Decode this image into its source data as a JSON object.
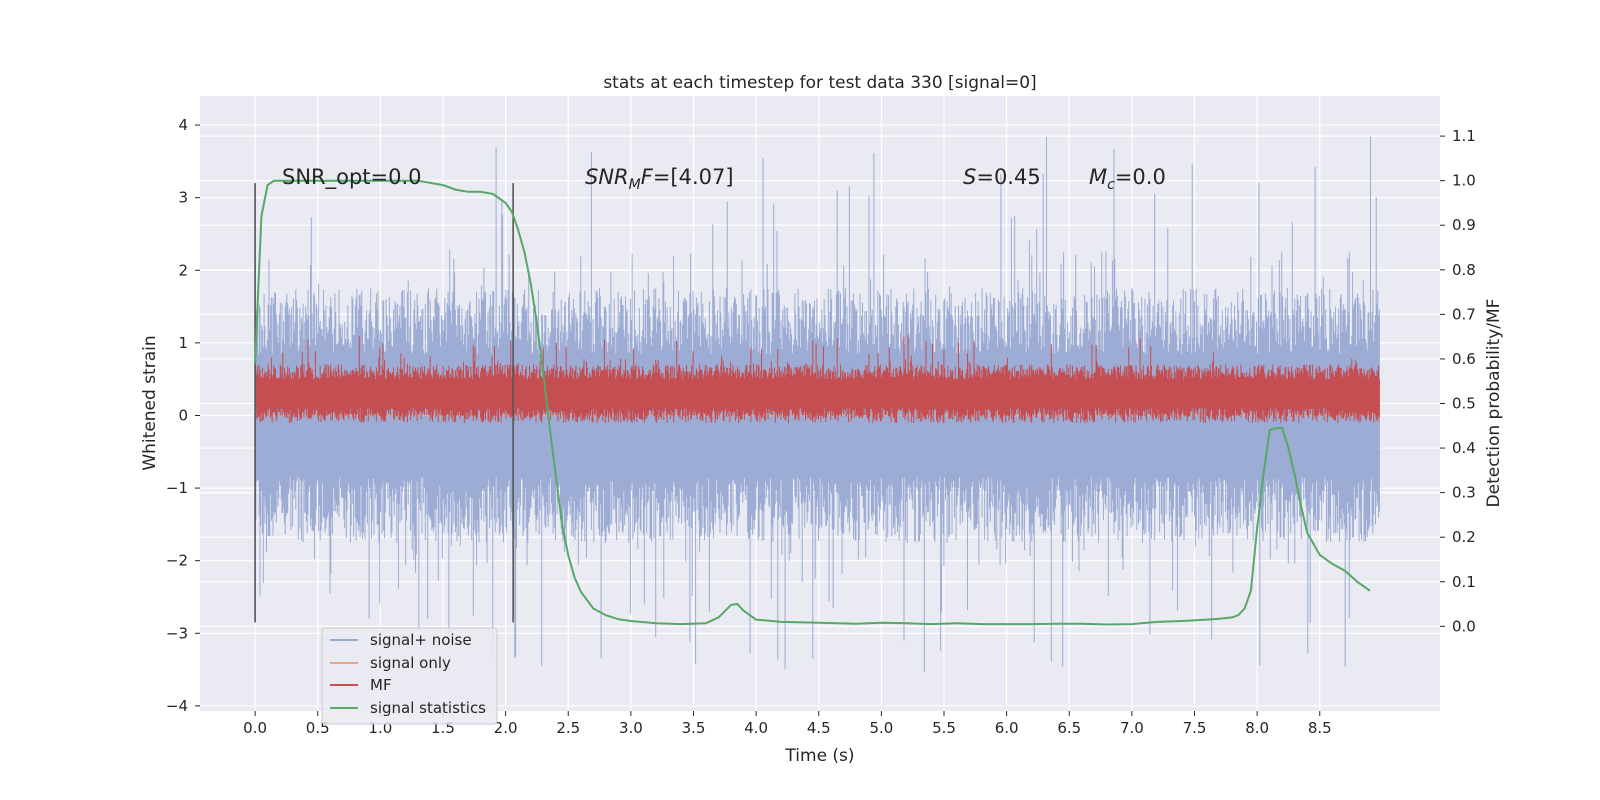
{
  "chart_data": {
    "type": "line",
    "title": "stats at each timestep for test data 330 [signal=0]",
    "xlabel": "Time (s)",
    "ylabel": "Whitened strain",
    "ylabel_right": "Detection probability/MF",
    "xlim": [
      -0.44,
      9.46
    ],
    "ylim": [
      -4.07,
      4.4
    ],
    "ylim_right": [
      -0.19,
      1.19
    ],
    "x_ticks": [
      "0.0",
      "0.5",
      "1.0",
      "1.5",
      "2.0",
      "2.5",
      "3.0",
      "3.5",
      "4.0",
      "4.5",
      "5.0",
      "5.5",
      "6.0",
      "6.5",
      "7.0",
      "7.5",
      "8.0",
      "8.5"
    ],
    "y_ticks": [
      "4",
      "3",
      "2",
      "1",
      "0",
      "−1",
      "−2",
      "−3",
      "−4"
    ],
    "y_ticks_right": [
      "1.1",
      "1.0",
      "0.9",
      "0.8",
      "0.7",
      "0.6",
      "0.5",
      "0.4",
      "0.3",
      "0.2",
      "0.1",
      "0.0"
    ],
    "grid": true,
    "legend_position": "lower-left",
    "annotations": {
      "snr_opt": "SNR_opt=0.0",
      "snr_mf_prefix": "SNR",
      "snr_mf_sub": "M",
      "snr_mf_var": "F",
      "snr_mf_value": "=[4.07]",
      "s_var": "S",
      "s_value": "=0.45",
      "mc_var": "M",
      "mc_sub": "c",
      "mc_value": "=0.0"
    },
    "vlines": [
      {
        "x": 0.0,
        "ymin": -2.85,
        "ymax": 3.2
      },
      {
        "x": 2.06,
        "ymin": -2.85,
        "ymax": 3.2
      }
    ],
    "series": [
      {
        "name": "signal+ noise",
        "color": "#98a9d2",
        "axis": "left",
        "kind": "noise",
        "x_range": [
          0.0,
          8.98
        ],
        "band": [
          -1.3,
          1.3
        ],
        "max_peak": 4.02,
        "min_peak": -3.55
      },
      {
        "name": "signal only",
        "color": "#e8a58c",
        "axis": "left",
        "kind": "flat",
        "x_range": [
          0.0,
          8.98
        ],
        "value": 0.0
      },
      {
        "name": "MF",
        "color": "#c44e52",
        "axis": "left",
        "kind": "noise",
        "x_range": [
          0.0,
          8.98
        ],
        "band": [
          0.0,
          0.6
        ],
        "max_peak": 1.1,
        "min_peak": 0.0
      },
      {
        "name": "signal statistics",
        "color": "#55a868",
        "axis": "right",
        "kind": "line",
        "x": [
          0.0,
          0.05,
          0.1,
          0.15,
          0.2,
          0.3,
          0.5,
          0.8,
          1.0,
          1.3,
          1.5,
          1.6,
          1.7,
          1.8,
          1.9,
          1.95,
          2.0,
          2.05,
          2.1,
          2.15,
          2.2,
          2.25,
          2.3,
          2.35,
          2.4,
          2.45,
          2.5,
          2.55,
          2.6,
          2.7,
          2.8,
          2.9,
          3.0,
          3.2,
          3.4,
          3.6,
          3.7,
          3.8,
          3.85,
          3.9,
          4.0,
          4.2,
          4.5,
          4.8,
          5.0,
          5.2,
          5.4,
          5.6,
          5.8,
          6.0,
          6.2,
          6.4,
          6.6,
          6.8,
          7.0,
          7.2,
          7.4,
          7.6,
          7.7,
          7.8,
          7.85,
          7.9,
          7.95,
          8.0,
          8.05,
          8.1,
          8.15,
          8.2,
          8.25,
          8.3,
          8.35,
          8.4,
          8.45,
          8.5,
          8.6,
          8.7,
          8.8,
          8.9
        ],
        "y": [
          0.59,
          0.92,
          0.99,
          1.0,
          1.0,
          1.0,
          1.0,
          1.0,
          1.0,
          1.0,
          0.99,
          0.98,
          0.975,
          0.975,
          0.97,
          0.96,
          0.95,
          0.93,
          0.89,
          0.84,
          0.77,
          0.68,
          0.57,
          0.45,
          0.34,
          0.23,
          0.16,
          0.11,
          0.078,
          0.04,
          0.025,
          0.016,
          0.012,
          0.007,
          0.005,
          0.007,
          0.02,
          0.048,
          0.05,
          0.035,
          0.015,
          0.01,
          0.008,
          0.006,
          0.008,
          0.007,
          0.005,
          0.007,
          0.005,
          0.005,
          0.005,
          0.006,
          0.006,
          0.004,
          0.005,
          0.01,
          0.012,
          0.015,
          0.017,
          0.02,
          0.025,
          0.04,
          0.08,
          0.22,
          0.34,
          0.44,
          0.445,
          0.445,
          0.4,
          0.34,
          0.27,
          0.21,
          0.185,
          0.16,
          0.14,
          0.125,
          0.1,
          0.08
        ]
      }
    ]
  }
}
